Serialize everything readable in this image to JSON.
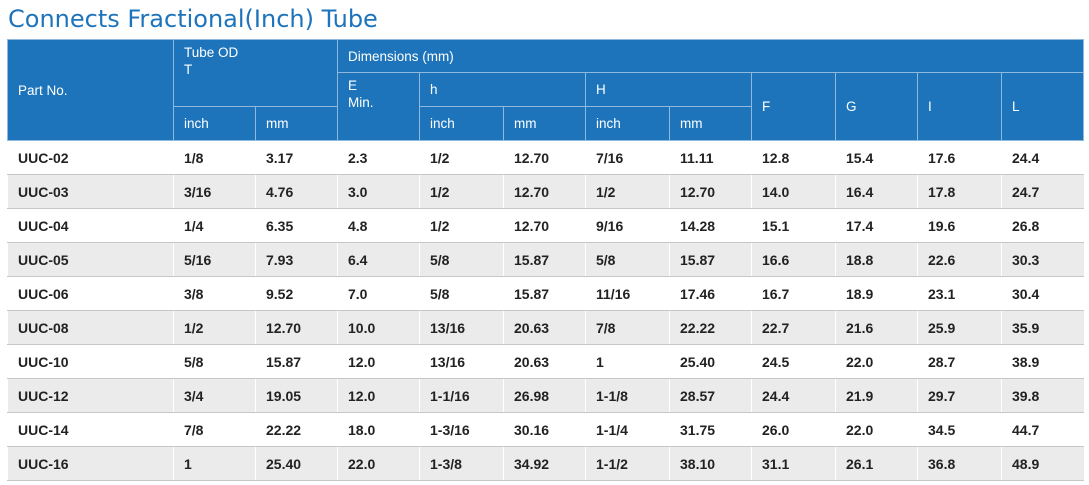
{
  "title": "Connects Fractional(Inch) Tube",
  "headers": {
    "part_no": "Part No.",
    "tube_od": "Tube OD",
    "tube_od_sym": "T",
    "dimensions": "Dimensions (mm)",
    "e": "E",
    "e_min": "Min.",
    "h_small": "h",
    "h_big": "H",
    "f": "F",
    "g": "G",
    "i": "I",
    "l": "L",
    "inch": "inch",
    "mm": "mm"
  },
  "rows": [
    [
      "UUC-02",
      "1/8",
      "3.17",
      "2.3",
      "1/2",
      "12.70",
      "7/16",
      "11.11",
      "12.8",
      "15.4",
      "17.6",
      "24.4"
    ],
    [
      "UUC-03",
      "3/16",
      "4.76",
      "3.0",
      "1/2",
      "12.70",
      "1/2",
      "12.70",
      "14.0",
      "16.4",
      "17.8",
      "24.7"
    ],
    [
      "UUC-04",
      "1/4",
      "6.35",
      "4.8",
      "1/2",
      "12.70",
      "9/16",
      "14.28",
      "15.1",
      "17.4",
      "19.6",
      "26.8"
    ],
    [
      "UUC-05",
      "5/16",
      "7.93",
      "6.4",
      "5/8",
      "15.87",
      "5/8",
      "15.87",
      "16.6",
      "18.8",
      "22.6",
      "30.3"
    ],
    [
      "UUC-06",
      "3/8",
      "9.52",
      "7.0",
      "5/8",
      "15.87",
      "11/16",
      "17.46",
      "16.7",
      "18.9",
      "23.1",
      "30.4"
    ],
    [
      "UUC-08",
      "1/2",
      "12.70",
      "10.0",
      "13/16",
      "20.63",
      "7/8",
      "22.22",
      "22.7",
      "21.6",
      "25.9",
      "35.9"
    ],
    [
      "UUC-10",
      "5/8",
      "15.87",
      "12.0",
      "13/16",
      "20.63",
      "1",
      "25.40",
      "24.5",
      "22.0",
      "28.7",
      "38.9"
    ],
    [
      "UUC-12",
      "3/4",
      "19.05",
      "12.0",
      "1-1/16",
      "26.98",
      "1-1/8",
      "28.57",
      "24.4",
      "21.9",
      "29.7",
      "39.8"
    ],
    [
      "UUC-14",
      "7/8",
      "22.22",
      "18.0",
      "1-3/16",
      "30.16",
      "1-1/4",
      "31.75",
      "26.0",
      "22.0",
      "34.5",
      "44.7"
    ],
    [
      "UUC-16",
      "1",
      "25.40",
      "22.0",
      "1-3/8",
      "34.92",
      "1-1/2",
      "38.10",
      "31.1",
      "26.1",
      "36.8",
      "48.9"
    ]
  ]
}
